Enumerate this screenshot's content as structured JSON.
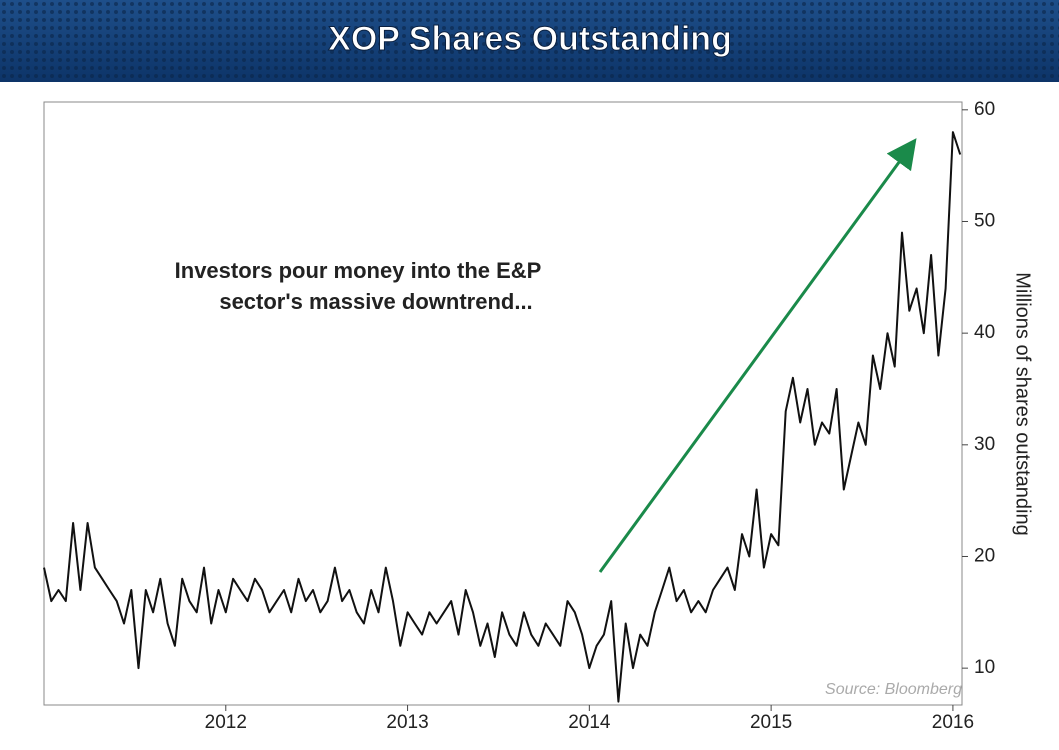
{
  "chart_data": {
    "type": "line",
    "title": "XOP Shares Outstanding",
    "annotation": [
      "Investors pour money into the E&P",
      "sector's massive downtrend..."
    ],
    "source": "Source: Bloomberg",
    "ylabel": "Millions of shares outstanding",
    "color": "#111111",
    "xlim": [
      2011,
      2016.05
    ],
    "xticks": [
      2012,
      2013,
      2014,
      2015,
      2016
    ],
    "ylim": [
      6.7,
      60.7
    ],
    "yticks": [
      10,
      20,
      30,
      40,
      50,
      60
    ],
    "x": [
      2011,
      2011.04,
      2011.08,
      2011.12,
      2011.16,
      2011.2,
      2011.24,
      2011.28,
      2011.32,
      2011.36,
      2011.4,
      2011.44,
      2011.48,
      2011.52,
      2011.56,
      2011.6,
      2011.64,
      2011.68,
      2011.72,
      2011.76,
      2011.8,
      2011.84,
      2011.88,
      2011.92,
      2011.96,
      2012,
      2012.04,
      2012.08,
      2012.12,
      2012.16,
      2012.2,
      2012.24,
      2012.28,
      2012.32,
      2012.36,
      2012.4,
      2012.44,
      2012.48,
      2012.52,
      2012.56,
      2012.6,
      2012.64,
      2012.68,
      2012.72,
      2012.76,
      2012.8,
      2012.84,
      2012.88,
      2012.92,
      2012.96,
      2013,
      2013.04,
      2013.08,
      2013.12,
      2013.16,
      2013.2,
      2013.24,
      2013.28,
      2013.32,
      2013.36,
      2013.4,
      2013.44,
      2013.48,
      2013.52,
      2013.56,
      2013.6,
      2013.64,
      2013.68,
      2013.72,
      2013.76,
      2013.8,
      2013.84,
      2013.88,
      2013.92,
      2013.96,
      2014,
      2014.04,
      2014.08,
      2014.12,
      2014.16,
      2014.2,
      2014.24,
      2014.28,
      2014.32,
      2014.36,
      2014.4,
      2014.44,
      2014.48,
      2014.52,
      2014.56,
      2014.6,
      2014.64,
      2014.68,
      2014.72,
      2014.76,
      2014.8,
      2014.84,
      2014.88,
      2014.92,
      2014.96,
      2015,
      2015.04,
      2015.08,
      2015.12,
      2015.16,
      2015.2,
      2015.24,
      2015.28,
      2015.32,
      2015.36,
      2015.4,
      2015.44,
      2015.48,
      2015.52,
      2015.56,
      2015.6,
      2015.64,
      2015.68,
      2015.72,
      2015.76,
      2015.8,
      2015.84,
      2015.88,
      2015.92,
      2015.96,
      2016,
      2016.04
    ],
    "values": [
      19,
      16,
      17,
      16,
      23,
      17,
      23,
      19,
      18,
      17,
      16,
      14,
      17,
      10,
      17,
      15,
      18,
      14,
      12,
      18,
      16,
      15,
      19,
      14,
      17,
      15,
      18,
      17,
      16,
      18,
      17,
      15,
      16,
      17,
      15,
      18,
      16,
      17,
      15,
      16,
      19,
      16,
      17,
      15,
      14,
      17,
      15,
      19,
      16,
      12,
      15,
      14,
      13,
      15,
      14,
      15,
      16,
      13,
      17,
      15,
      12,
      14,
      11,
      15,
      13,
      12,
      15,
      13,
      12,
      14,
      13,
      12,
      16,
      15,
      13,
      10,
      12,
      13,
      16,
      7,
      14,
      10,
      13,
      12,
      15,
      17,
      19,
      16,
      17,
      15,
      16,
      15,
      17,
      18,
      19,
      17,
      22,
      20,
      26,
      19,
      22,
      21,
      33,
      36,
      32,
      35,
      30,
      32,
      31,
      35,
      26,
      29,
      32,
      30,
      38,
      35,
      40,
      37,
      49,
      42,
      44,
      40,
      47,
      38,
      44,
      58,
      56
    ]
  }
}
